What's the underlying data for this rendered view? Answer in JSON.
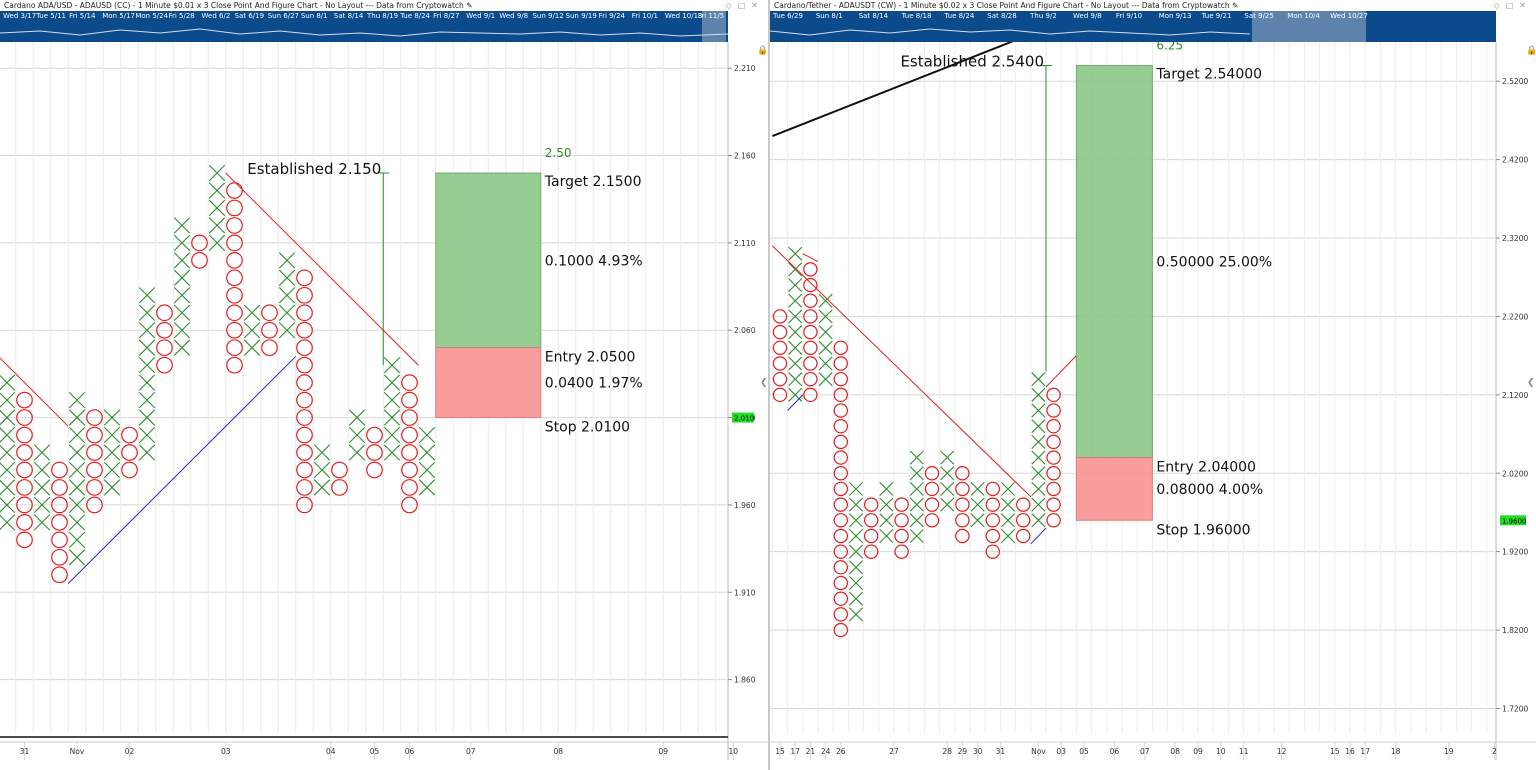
{
  "left": {
    "title": "Cardano ADA/USD - ADAUSD (CC) - 1 Minute $0.01 x 3 Close Point And Figure Chart - No Layout --- Data from Cryptowatch",
    "nav_labels": [
      "Wed 3/17",
      "Tue 5/11",
      "Fri 5/14",
      "Mon 5/17",
      "Mon 5/24",
      "Fri 5/28",
      "Wed 6/2",
      "Sat 6/19",
      "Sun 6/27",
      "Sun 8/1",
      "Sat 8/14",
      "Thu 8/19",
      "Tue 8/24",
      "Fri 8/27",
      "Wed 9/1",
      "Wed 9/8",
      "Sun 9/12",
      "Sun 9/19",
      "Fri 9/24",
      "Fri 10/1",
      "Wed 10/13",
      "Fri 11/5"
    ],
    "chart_data": {
      "type": "point-and-figure",
      "box_size": 0.01,
      "reversal": 3,
      "ylim": [
        1.83,
        2.225
      ],
      "y_ticks": [
        "2.210",
        "2.160",
        "2.110",
        "2.060",
        "2.010",
        "1.960",
        "1.910",
        "1.860"
      ],
      "x_ticks": [
        {
          "label": "31",
          "col": 1
        },
        {
          "label": "Nov",
          "col": 4
        },
        {
          "label": "02",
          "col": 7
        },
        {
          "label": "03",
          "col": 12.5
        },
        {
          "label": "04",
          "col": 18.5
        },
        {
          "label": "05",
          "col": 21
        },
        {
          "label": "06",
          "col": 23
        },
        {
          "label": "07",
          "col": 26.5
        },
        {
          "label": "08",
          "col": 31.5
        },
        {
          "label": "09",
          "col": 37.5
        },
        {
          "label": "10",
          "col": 41.5
        }
      ],
      "current_price": "2.010",
      "columns": [
        {
          "type": "X",
          "low": 1.95,
          "high": 2.03
        },
        {
          "type": "O",
          "low": 1.94,
          "high": 2.02
        },
        {
          "type": "X",
          "low": 1.95,
          "high": 1.99
        },
        {
          "type": "O",
          "low": 1.92,
          "high": 1.98
        },
        {
          "type": "X",
          "low": 1.93,
          "high": 2.02
        },
        {
          "type": "O",
          "low": 1.96,
          "high": 2.01
        },
        {
          "type": "X",
          "low": 1.97,
          "high": 2.01
        },
        {
          "type": "O",
          "low": 1.98,
          "high": 2.0
        },
        {
          "type": "X",
          "low": 1.99,
          "high": 2.08
        },
        {
          "type": "O",
          "low": 2.04,
          "high": 2.07
        },
        {
          "type": "X",
          "low": 2.05,
          "high": 2.12
        },
        {
          "type": "O",
          "low": 2.1,
          "high": 2.11
        },
        {
          "type": "X",
          "low": 2.11,
          "high": 2.15
        },
        {
          "type": "O",
          "low": 2.04,
          "high": 2.14
        },
        {
          "type": "X",
          "low": 2.05,
          "high": 2.07
        },
        {
          "type": "O",
          "low": 2.05,
          "high": 2.07
        },
        {
          "type": "X",
          "low": 2.06,
          "high": 2.1
        },
        {
          "type": "O",
          "low": 1.96,
          "high": 2.09
        },
        {
          "type": "X",
          "low": 1.97,
          "high": 1.99
        },
        {
          "type": "O",
          "low": 1.97,
          "high": 1.98
        },
        {
          "type": "X",
          "low": 1.99,
          "high": 2.01
        },
        {
          "type": "O",
          "low": 1.98,
          "high": 2.0
        },
        {
          "type": "X",
          "low": 1.99,
          "high": 2.04
        },
        {
          "type": "O",
          "low": 1.96,
          "high": 2.03
        },
        {
          "type": "X",
          "low": 1.97,
          "high": 2.0
        }
      ],
      "trendlines": [
        {
          "color": "#e02020",
          "from": {
            "col": -0.5,
            "price": 2.045
          },
          "to": {
            "col": 3.5,
            "price": 2.005
          }
        },
        {
          "color": "#e02020",
          "from": {
            "col": 12.5,
            "price": 2.15
          },
          "to": {
            "col": 23.5,
            "price": 2.04
          }
        },
        {
          "color": "#2a2ad6",
          "from": {
            "col": 3.5,
            "price": 1.915
          },
          "to": {
            "col": 16.5,
            "price": 2.045
          }
        }
      ],
      "established": {
        "label": "Established 2.150",
        "price": 2.15,
        "col": 21.5,
        "base_price": 2.04
      },
      "trade": {
        "ratio": "2.50",
        "target_label": "Target  2.1500",
        "target": 2.15,
        "reward_label": "0.1000   4.93%",
        "entry_label": "Entry  2.0500",
        "entry": 2.05,
        "risk_label": "0.0400   1.97%",
        "stop_label": "Stop  2.0100",
        "stop": 2.01,
        "col_from": 25,
        "col_to": 30
      }
    }
  },
  "right": {
    "title": "Cardano/Tether - ADAUSDT (CW) - 1 Minute $0.02 x 3 Close Point And Figure Chart - No Layout --- Data from Cryptowatch",
    "nav_labels": [
      "Tue 6/29",
      "Sun 8/1",
      "Sat 8/14",
      "Tue 8/18",
      "Tue 8/24",
      "Sat 8/28",
      "Thu 9/2",
      "Wed 9/8",
      "Fri 9/10",
      "Mon 9/13",
      "Tue 9/21",
      "Sat 9/25",
      "Mon 10/4",
      "Wed 10/27"
    ],
    "chart_data": {
      "type": "point-and-figure",
      "box_size": 0.02,
      "reversal": 3,
      "ylim": [
        1.69,
        2.57
      ],
      "y_ticks": [
        "2.5200",
        "2.4200",
        "2.3200",
        "2.2200",
        "2.1200",
        "2.0200",
        "1.9200",
        "1.8200",
        "1.7200"
      ],
      "x_ticks": [
        {
          "label": "15",
          "col": 0
        },
        {
          "label": "17",
          "col": 1
        },
        {
          "label": "21",
          "col": 2
        },
        {
          "label": "24",
          "col": 3
        },
        {
          "label": "26",
          "col": 4
        },
        {
          "label": "27",
          "col": 7.5
        },
        {
          "label": "28",
          "col": 11
        },
        {
          "label": "29",
          "col": 12
        },
        {
          "label": "30",
          "col": 13
        },
        {
          "label": "31",
          "col": 14.5
        },
        {
          "label": "Nov",
          "col": 17
        },
        {
          "label": "03",
          "col": 18.5
        },
        {
          "label": "05",
          "col": 20
        },
        {
          "label": "06",
          "col": 22
        },
        {
          "label": "07",
          "col": 24
        },
        {
          "label": "08",
          "col": 26
        },
        {
          "label": "09",
          "col": 27.5
        },
        {
          "label": "10",
          "col": 29
        },
        {
          "label": "11",
          "col": 30.5
        },
        {
          "label": "12",
          "col": 33
        },
        {
          "label": "15",
          "col": 36.5
        },
        {
          "label": "16",
          "col": 37.5
        },
        {
          "label": "17",
          "col": 38.5
        },
        {
          "label": "18",
          "col": 40.5
        },
        {
          "label": "19",
          "col": 44
        },
        {
          "label": "2",
          "col": 47
        }
      ],
      "current_price": "1.9600",
      "columns": [
        {
          "type": "O",
          "low": 2.12,
          "high": 2.22
        },
        {
          "type": "X",
          "low": 2.12,
          "high": 2.3
        },
        {
          "type": "O",
          "low": 2.12,
          "high": 2.28
        },
        {
          "type": "X",
          "low": 2.14,
          "high": 2.24
        },
        {
          "type": "O",
          "low": 1.82,
          "high": 2.18
        },
        {
          "type": "X",
          "low": 1.84,
          "high": 2.0
        },
        {
          "type": "O",
          "low": 1.92,
          "high": 1.98
        },
        {
          "type": "X",
          "low": 1.94,
          "high": 2.0
        },
        {
          "type": "O",
          "low": 1.92,
          "high": 1.98
        },
        {
          "type": "X",
          "low": 1.94,
          "high": 2.04
        },
        {
          "type": "O",
          "low": 1.96,
          "high": 2.02
        },
        {
          "type": "X",
          "low": 1.98,
          "high": 2.04
        },
        {
          "type": "O",
          "low": 1.94,
          "high": 2.02
        },
        {
          "type": "X",
          "low": 1.96,
          "high": 2.0
        },
        {
          "type": "O",
          "low": 1.92,
          "high": 2.0
        },
        {
          "type": "X",
          "low": 1.94,
          "high": 2.0
        },
        {
          "type": "O",
          "low": 1.94,
          "high": 1.98
        },
        {
          "type": "X",
          "low": 1.96,
          "high": 2.14
        },
        {
          "type": "O",
          "low": 1.96,
          "high": 2.12
        }
      ],
      "trendlines": [
        {
          "color": "#e02020",
          "from": {
            "col": -0.5,
            "price": 2.31
          },
          "to": {
            "col": 16.5,
            "price": 1.99
          }
        },
        {
          "color": "#e02020",
          "from": {
            "col": 1.5,
            "price": 2.3
          },
          "to": {
            "col": 2.5,
            "price": 2.29
          }
        },
        {
          "color": "#e02020",
          "from": {
            "col": 17.5,
            "price": 2.13
          },
          "to": {
            "col": 19.5,
            "price": 2.17
          }
        },
        {
          "color": "#2a2ad6",
          "from": {
            "col": 0.5,
            "price": 2.1
          },
          "to": {
            "col": 1.5,
            "price": 2.12
          }
        },
        {
          "color": "#2a2ad6",
          "from": {
            "col": 16.5,
            "price": 1.93
          },
          "to": {
            "col": 17.5,
            "price": 1.95
          }
        },
        {
          "color": "#111111",
          "from": {
            "col": -0.5,
            "price": 2.45
          },
          "to": {
            "col": 16.5,
            "price": 2.58
          }
        }
      ],
      "established": {
        "label": "Established 2.5400",
        "price": 2.54,
        "col": 17.5,
        "base_price": 2.15
      },
      "trade": {
        "ratio": "6.25",
        "target_label": "Target  2.54000",
        "target": 2.54,
        "reward_label": "0.50000   25.00%",
        "entry_label": "Entry  2.04000",
        "entry": 2.04,
        "risk_label": "0.08000   4.00%",
        "stop_label": "Stop  1.96000",
        "stop": 1.96,
        "col_from": 20,
        "col_to": 24
      }
    }
  }
}
